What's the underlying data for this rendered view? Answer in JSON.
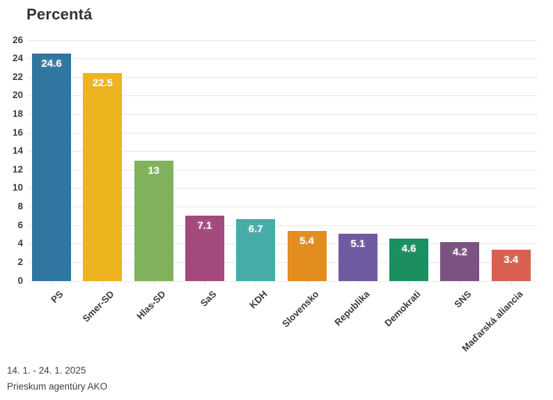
{
  "title": "Percentá",
  "footer": {
    "line1": "14. 1. - 24. 1. 2025",
    "line2": "Prieskum agentúry AKO"
  },
  "colors": {
    "background": "#ffffff",
    "grid": "#e8e8e8",
    "axis_text": "#3d3d3d",
    "bar_value_text": "#ffffff"
  },
  "chart_data": {
    "type": "bar",
    "title": "Percentá",
    "categories": [
      "PS",
      "Smer-SD",
      "Hlas-SD",
      "SaS",
      "KDH",
      "Slovensko",
      "Republika",
      "Demokrati",
      "SNS",
      "Maďarská aliancia"
    ],
    "values": [
      24.6,
      22.5,
      13,
      7.1,
      6.7,
      5.4,
      5.1,
      4.6,
      4.2,
      3.4
    ],
    "value_labels": [
      "24.6",
      "22.5",
      "13",
      "7.1",
      "6.7",
      "5.4",
      "5.1",
      "4.6",
      "4.2",
      "3.4"
    ],
    "bar_colors": [
      "#2f76a0",
      "#edb41f",
      "#7fb25a",
      "#a34a7d",
      "#47aba8",
      "#e28d1e",
      "#6e5aa0",
      "#1c8f60",
      "#7b5282",
      "#d8604f"
    ],
    "xlabel": "",
    "ylabel": "",
    "ylim": [
      0,
      26
    ],
    "ytick_step": 2,
    "ytick_labels": [
      "0",
      "2",
      "4",
      "6",
      "8",
      "10",
      "12",
      "14",
      "16",
      "18",
      "20",
      "22",
      "24",
      "26"
    ],
    "grid": true,
    "legend": "none",
    "annotations": [
      "14. 1. - 24. 1. 2025",
      "Prieskum agentúry AKO"
    ]
  }
}
